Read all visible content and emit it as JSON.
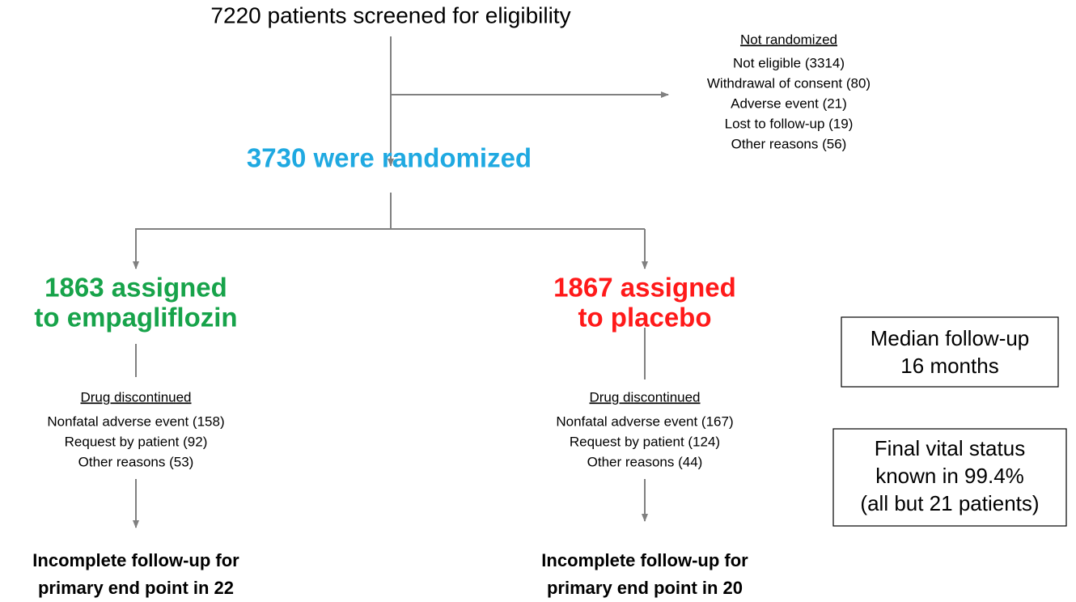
{
  "screened": "7220 patients screened for eligibility",
  "randomized": "3730 were randomized",
  "not_randomized": {
    "heading": "Not randomized",
    "items": [
      "Not eligible (3314)",
      "Withdrawal of consent (80)",
      "Adverse event (21)",
      "Lost to follow-up (19)",
      "Other reasons (56)"
    ]
  },
  "arms": [
    {
      "label": [
        "1863 assigned",
        "to empagliflozin"
      ],
      "discontinued": {
        "heading": "Drug discontinued",
        "items": [
          "Nonfatal adverse event (158)",
          "Request by patient (92)",
          "Other reasons (53)"
        ]
      },
      "outcome": [
        "Incomplete follow-up for",
        "primary end point in 22"
      ]
    },
    {
      "label": [
        "1867 assigned",
        "to placebo"
      ],
      "discontinued": {
        "heading": "Drug discontinued",
        "items": [
          "Nonfatal adverse event (167)",
          "Request by patient (124)",
          "Other reasons (44)"
        ]
      },
      "outcome": [
        "Incomplete follow-up for",
        "primary end point in 20"
      ]
    }
  ],
  "notes": [
    {
      "lines": [
        "Median follow-up",
        "16 months"
      ]
    },
    {
      "lines": [
        "Final vital status",
        "known in 99.4%",
        "(all but 21 patients)"
      ]
    }
  ]
}
